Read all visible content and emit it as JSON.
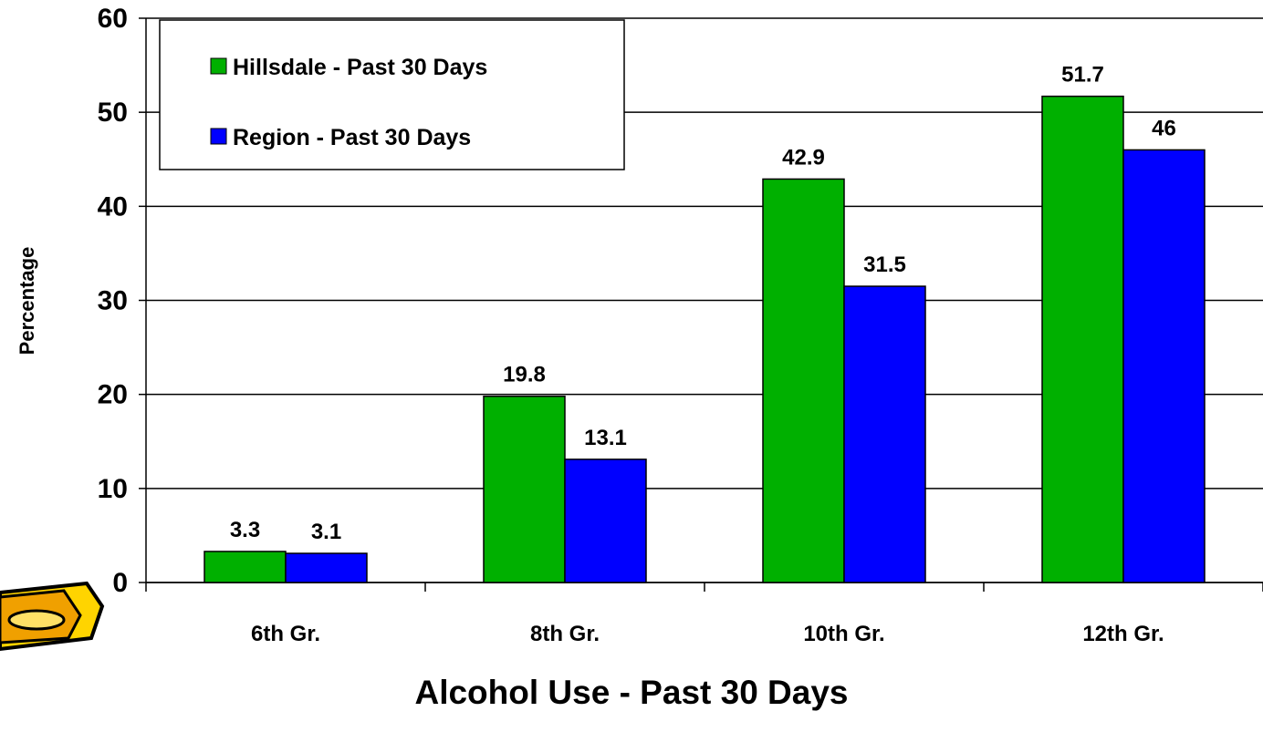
{
  "chart_data": {
    "type": "bar",
    "title": "Alcohol Use - Past 30 Days",
    "y_label": "Percentage",
    "categories": [
      "6th Gr.",
      "8th Gr.",
      "10th Gr.",
      "12th Gr."
    ],
    "series": [
      {
        "name": "Hillsdale - Past 30 Days",
        "color": "#00b000",
        "values": [
          3.3,
          19.8,
          42.9,
          51.7
        ]
      },
      {
        "name": "Region - Past 30 Days",
        "color": "#0000ff",
        "values": [
          3.1,
          13.1,
          31.5,
          46
        ]
      }
    ],
    "ylim": [
      0,
      60
    ],
    "yticks": [
      0,
      10,
      20,
      30,
      40,
      50,
      60
    ],
    "grid": true,
    "legend": "top-left"
  }
}
